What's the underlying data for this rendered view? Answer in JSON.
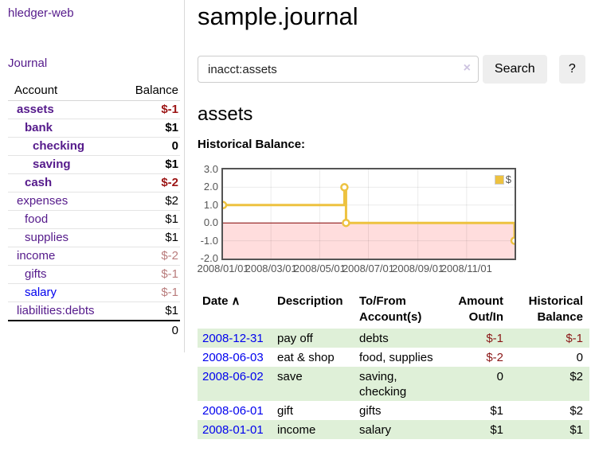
{
  "app": {
    "brand": "hledger-web"
  },
  "sidebar": {
    "nav_journal": "Journal",
    "accounts_table": {
      "headers": {
        "account": "Account",
        "balance": "Balance"
      },
      "rows": [
        {
          "name": "assets",
          "indent": 1,
          "bold": true,
          "link": "visited",
          "balance": "$-1",
          "balance_style": "neg-strong"
        },
        {
          "name": "bank",
          "indent": 2,
          "bold": true,
          "link": "visited",
          "balance": "$1",
          "balance_style": "pos"
        },
        {
          "name": "checking",
          "indent": 3,
          "bold": true,
          "link": "visited",
          "balance": "0",
          "balance_style": "pos"
        },
        {
          "name": "saving",
          "indent": 3,
          "bold": true,
          "link": "visited",
          "balance": "$1",
          "balance_style": "pos"
        },
        {
          "name": "cash",
          "indent": 2,
          "bold": true,
          "link": "visited",
          "balance": "$-2",
          "balance_style": "neg-strong"
        },
        {
          "name": "expenses",
          "indent": 1,
          "bold": false,
          "link": "visited",
          "balance": "$2",
          "balance_style": "pos"
        },
        {
          "name": "food",
          "indent": 2,
          "bold": false,
          "link": "visited",
          "balance": "$1",
          "balance_style": "pos"
        },
        {
          "name": "supplies",
          "indent": 2,
          "bold": false,
          "link": "visited",
          "balance": "$1",
          "balance_style": "pos"
        },
        {
          "name": "income",
          "indent": 1,
          "bold": false,
          "link": "visited",
          "balance": "$-2",
          "balance_style": "neg-muted"
        },
        {
          "name": "gifts",
          "indent": 2,
          "bold": false,
          "link": "visited",
          "balance": "$-1",
          "balance_style": "neg-muted"
        },
        {
          "name": "salary",
          "indent": 2,
          "bold": false,
          "link": "unvisited",
          "balance": "$-1",
          "balance_style": "neg-muted"
        },
        {
          "name": "liabilities:debts",
          "indent": 1,
          "bold": false,
          "link": "visited",
          "balance": "$1",
          "balance_style": "pos"
        }
      ],
      "total": "0"
    }
  },
  "header": {
    "title": "sample.journal"
  },
  "search": {
    "value": "inacct:assets",
    "clear_icon": "×",
    "button_label": "Search",
    "help_label": "?"
  },
  "account_page": {
    "title": "assets",
    "chart_label": "Historical Balance:"
  },
  "chart_data": {
    "type": "line",
    "title": "Historical Balance",
    "series": [
      {
        "name": "$",
        "color": "#edc240",
        "steps": true,
        "points": [
          [
            "2008-01-01",
            1
          ],
          [
            "2008-06-01",
            2
          ],
          [
            "2008-06-03",
            0
          ],
          [
            "2008-12-31",
            -1
          ]
        ]
      }
    ],
    "ylim": [
      -2,
      3
    ],
    "yticks": [
      "3.0",
      "2.0",
      "1.0",
      "0.0",
      "-1.0",
      "-2.0"
    ],
    "xticks": [
      "2008/01/01",
      "2008/03/01",
      "2008/05/01",
      "2008/07/01",
      "2008/09/01",
      "2008/11/01"
    ],
    "xlim": [
      "2008-01-01",
      "2008-12-31"
    ],
    "grid": true,
    "legend_position": "top-right",
    "negative_region_color": "#ffdddd",
    "zero_line_color": "#800000",
    "grid_line_color": "rgba(0,0,0,0.08)"
  },
  "register": {
    "headers": {
      "date": "Date",
      "description": "Description",
      "accounts": "To/From Account(s)",
      "amount": "Amount Out/In",
      "balance": "Historical Balance"
    },
    "sort_icon": "∧",
    "rows": [
      {
        "date": "2008-12-31",
        "description": "pay off",
        "accounts": "debts",
        "amount": "$-1",
        "amount_neg": true,
        "balance": "$-1",
        "balance_neg": true
      },
      {
        "date": "2008-06-03",
        "description": "eat & shop",
        "accounts": "food, supplies",
        "amount": "$-2",
        "amount_neg": true,
        "balance": "0",
        "balance_neg": false
      },
      {
        "date": "2008-06-02",
        "description": "save",
        "accounts": "saving, checking",
        "amount": "0",
        "amount_neg": false,
        "balance": "$2",
        "balance_neg": false
      },
      {
        "date": "2008-06-01",
        "description": "gift",
        "accounts": "gifts",
        "amount": "$1",
        "amount_neg": false,
        "balance": "$2",
        "balance_neg": false
      },
      {
        "date": "2008-01-01",
        "description": "income",
        "accounts": "salary",
        "amount": "$1",
        "amount_neg": false,
        "balance": "$1",
        "balance_neg": false
      }
    ]
  },
  "colors": {
    "link_visited_purple": "#551a8b",
    "link_unvisited_blue": "#0000ee",
    "negative_strong": "#9c1414",
    "negative_muted": "#b97c7c",
    "register_negative": "#8b1717",
    "row_stripe_green": "#dff0d8",
    "chart_series_gold": "#edc240",
    "chart_negative_area": "#ffdddd",
    "chart_zero_line": "#800000",
    "chart_border": "#545454",
    "axis_text": "#545454"
  }
}
